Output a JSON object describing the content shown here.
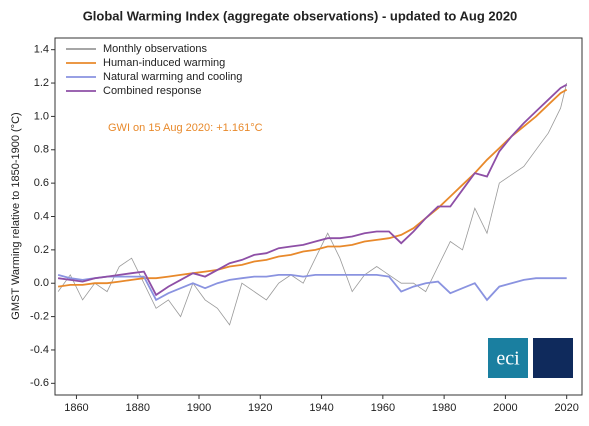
{
  "chart_data": {
    "type": "line",
    "title": "Global Warming Index (aggregate observations) - updated to Aug 2020",
    "y_label": "GMST Warming relative to 1850-1900 (°C)",
    "annotation": "GWI on 15 Aug 2020: +1.161°C",
    "logo_text": "eci",
    "x": [
      1854,
      1858,
      1862,
      1866,
      1870,
      1874,
      1878,
      1882,
      1886,
      1890,
      1894,
      1898,
      1902,
      1906,
      1910,
      1914,
      1918,
      1922,
      1926,
      1930,
      1934,
      1938,
      1942,
      1946,
      1950,
      1954,
      1958,
      1962,
      1966,
      1970,
      1974,
      1978,
      1982,
      1986,
      1990,
      1994,
      1998,
      2002,
      2006,
      2010,
      2014,
      2018,
      2020
    ],
    "series": [
      {
        "name": "Monthly observations",
        "color": "#9a9a9a",
        "values": [
          -0.05,
          0.05,
          -0.1,
          0.0,
          -0.05,
          0.1,
          0.15,
          0.0,
          -0.15,
          -0.1,
          -0.2,
          0.0,
          -0.1,
          -0.15,
          -0.25,
          0.0,
          -0.05,
          -0.1,
          0.0,
          0.05,
          0.0,
          0.15,
          0.3,
          0.15,
          -0.05,
          0.05,
          0.1,
          0.05,
          0.0,
          0.0,
          -0.05,
          0.1,
          0.25,
          0.2,
          0.45,
          0.3,
          0.6,
          0.65,
          0.7,
          0.8,
          0.9,
          1.05,
          1.2
        ]
      },
      {
        "name": "Human-induced warming",
        "color": "#e8892b",
        "values": [
          -0.02,
          -0.01,
          -0.01,
          0,
          0,
          0.01,
          0.02,
          0.03,
          0.03,
          0.04,
          0.05,
          0.06,
          0.07,
          0.08,
          0.1,
          0.11,
          0.13,
          0.14,
          0.16,
          0.17,
          0.19,
          0.2,
          0.22,
          0.22,
          0.23,
          0.25,
          0.26,
          0.27,
          0.29,
          0.33,
          0.39,
          0.45,
          0.52,
          0.59,
          0.66,
          0.74,
          0.81,
          0.88,
          0.94,
          1.0,
          1.07,
          1.14,
          1.16
        ]
      },
      {
        "name": "Natural warming and cooling",
        "color": "#8a93e0",
        "values": [
          0.05,
          0.03,
          0.02,
          0.03,
          0.04,
          0.04,
          0.04,
          0.04,
          -0.1,
          -0.06,
          -0.03,
          0,
          -0.03,
          0,
          0.02,
          0.03,
          0.04,
          0.04,
          0.05,
          0.05,
          0.04,
          0.05,
          0.05,
          0.05,
          0.05,
          0.05,
          0.05,
          0.04,
          -0.05,
          -0.02,
          0,
          0.01,
          -0.06,
          -0.03,
          0,
          -0.1,
          -0.02,
          0,
          0.02,
          0.03,
          0.03,
          0.03,
          0.03
        ]
      },
      {
        "name": "Combined response",
        "color": "#8e4fa6",
        "values": [
          0.03,
          0.02,
          0.01,
          0.03,
          0.04,
          0.05,
          0.06,
          0.07,
          -0.07,
          -0.02,
          0.02,
          0.06,
          0.04,
          0.08,
          0.12,
          0.14,
          0.17,
          0.18,
          0.21,
          0.22,
          0.23,
          0.25,
          0.27,
          0.27,
          0.28,
          0.3,
          0.31,
          0.31,
          0.24,
          0.31,
          0.39,
          0.46,
          0.46,
          0.56,
          0.66,
          0.64,
          0.79,
          0.88,
          0.96,
          1.03,
          1.1,
          1.17,
          1.19
        ]
      }
    ],
    "xlim": [
      1853,
      2025
    ],
    "ylim": [
      -0.67,
      1.47
    ],
    "xticks": [
      1860,
      1880,
      1900,
      1920,
      1940,
      1960,
      1980,
      2000,
      2020
    ],
    "yticks": [
      -0.6,
      -0.4,
      -0.2,
      {
        "value": 0,
        "label": "0.0"
      },
      0.2,
      0.4,
      0.6,
      0.8,
      {
        "value": 1,
        "label": "1.0"
      },
      1.2,
      1.4
    ],
    "legend": "upper left"
  }
}
